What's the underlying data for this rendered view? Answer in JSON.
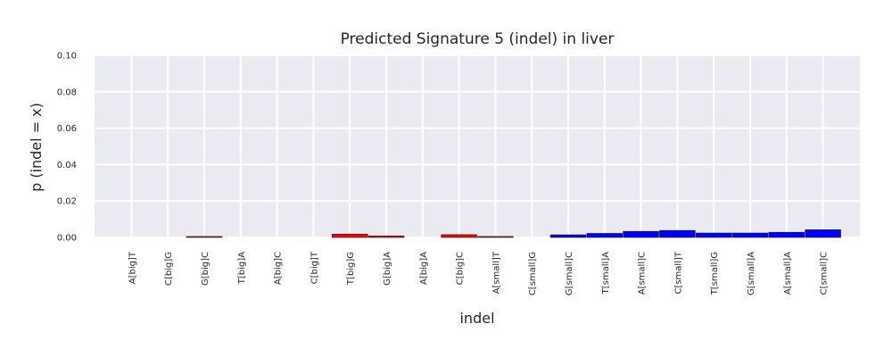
{
  "chart_data": {
    "type": "bar",
    "title": "Predicted Signature 5 (indel) in liver",
    "xlabel": "indel",
    "ylabel": "p (indel = x)",
    "ylim": [
      0,
      0.1
    ],
    "yticks": [
      "0.00",
      "0.02",
      "0.04",
      "0.06",
      "0.08",
      "0.10"
    ],
    "grid": true,
    "categories": [
      "A[big]T",
      "C[big]G",
      "G[big]C",
      "T[big]A",
      "A[big]C",
      "C[big]T",
      "T[big]G",
      "G[big]A",
      "A[big]A",
      "C[big]C",
      "A[small]T",
      "C[small]G",
      "G[small]C",
      "T[small]A",
      "A[small]C",
      "C[small]T",
      "T[small]G",
      "G[small]A",
      "A[small]A",
      "C[small]C"
    ],
    "values": [
      0.0,
      0.0,
      0.0005,
      0.0,
      0.0,
      0.0,
      0.0018,
      0.0008,
      0.0,
      0.0015,
      0.0005,
      0.0,
      0.0014,
      0.0022,
      0.0033,
      0.0038,
      0.0024,
      0.0024,
      0.0028,
      0.0042
    ],
    "colors": [
      "#ff0000",
      "#ff0000",
      "#ff0000",
      "#ff0000",
      "#ff0000",
      "#ff0000",
      "#ff0000",
      "#ff0000",
      "#ff0000",
      "#ff0000",
      "#ff0000",
      "#0000ff",
      "#0000ff",
      "#0000ff",
      "#0000ff",
      "#0000ff",
      "#0000ff",
      "#0000ff",
      "#0000ff",
      "#0000ff"
    ],
    "background_color": "#eaeaf2",
    "grid_color": "#ffffff"
  }
}
